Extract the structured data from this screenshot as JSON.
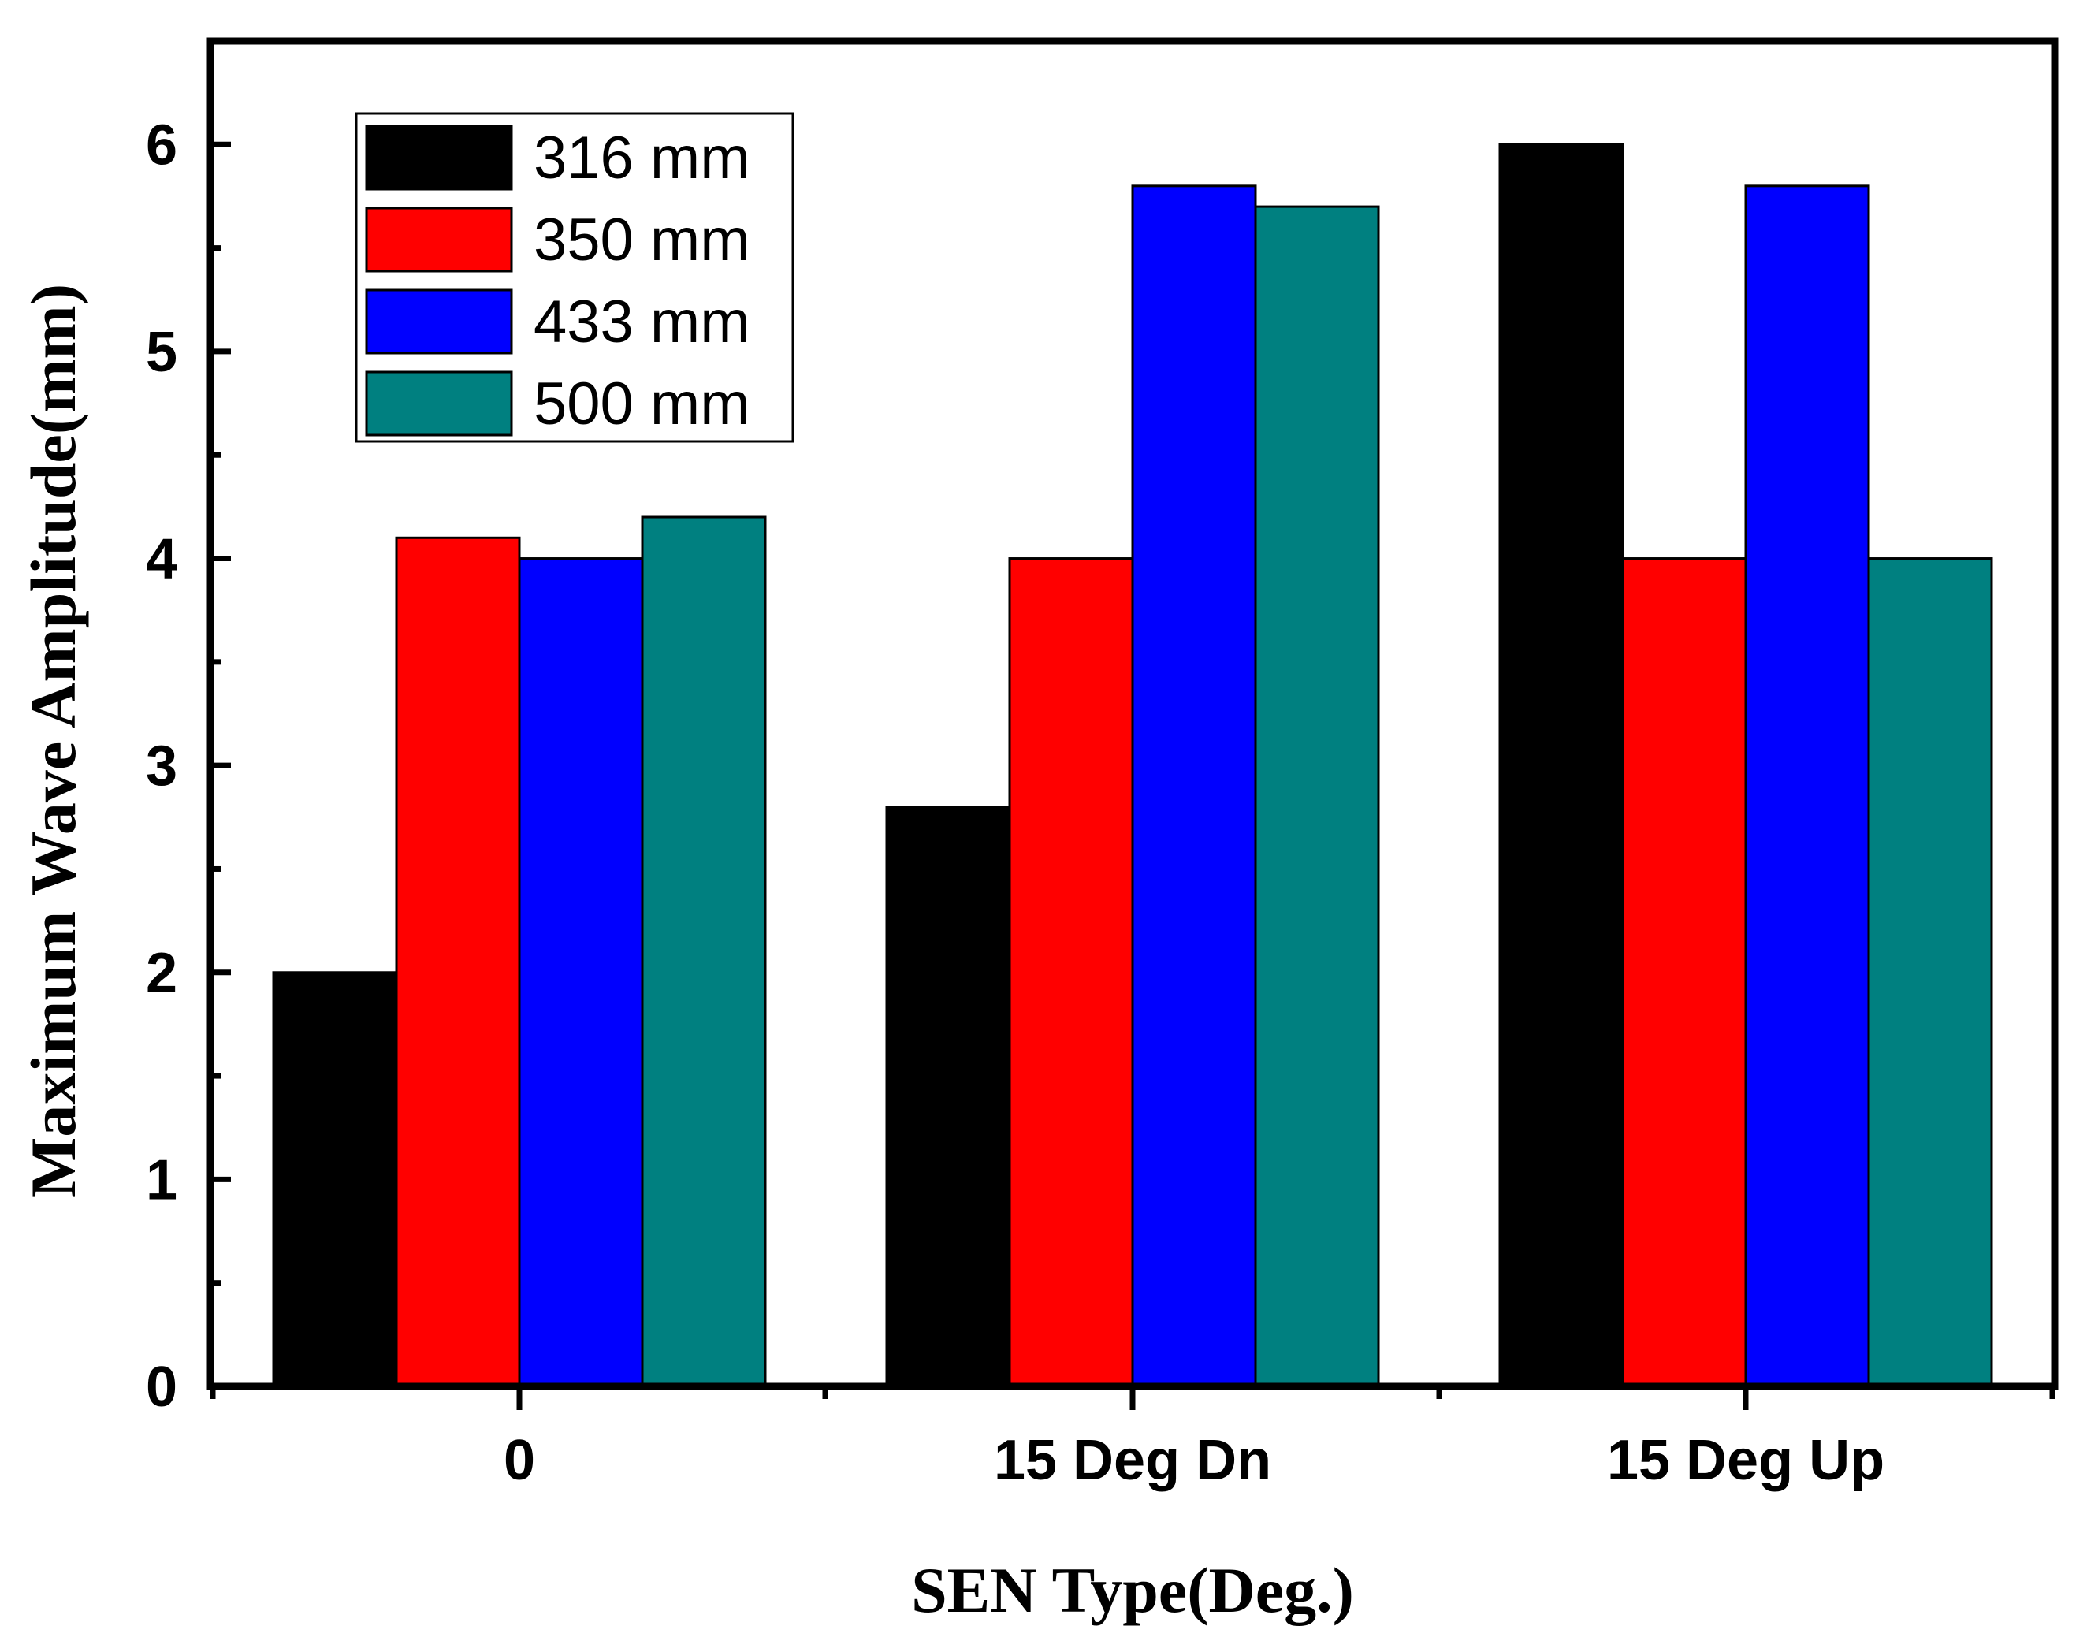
{
  "chart_data": {
    "type": "bar",
    "title": "",
    "xlabel": "SEN Type(Deg.)",
    "ylabel": "Maximum Wave Amplitude(mm)",
    "categories": [
      "0",
      "15 Deg Dn",
      "15 Deg Up"
    ],
    "ylim": [
      0,
      6.5
    ],
    "yticks": [
      "0",
      "1",
      "2",
      "3",
      "4",
      "5",
      "6"
    ],
    "grid": false,
    "legend_position": "top-left",
    "series": [
      {
        "name": "316 mm",
        "color": "#000000",
        "values": [
          2.0,
          2.8,
          6.0
        ]
      },
      {
        "name": "350 mm",
        "color": "#ff0000",
        "values": [
          4.1,
          4.0,
          4.0
        ]
      },
      {
        "name": "433 mm",
        "color": "#0000ff",
        "values": [
          4.0,
          5.8,
          5.8
        ]
      },
      {
        "name": "500 mm",
        "color": "#008080",
        "values": [
          4.2,
          5.7,
          4.0
        ]
      }
    ]
  }
}
